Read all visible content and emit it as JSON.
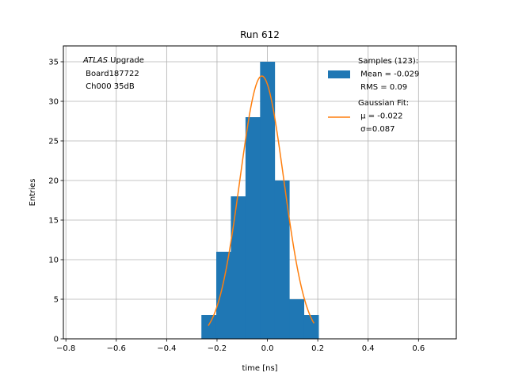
{
  "chart_data": {
    "type": "bar",
    "title": "Run 612",
    "xlabel": "time [ns]",
    "ylabel": "Entries",
    "xlim": [
      -0.81,
      0.75
    ],
    "ylim": [
      0,
      37
    ],
    "xticks": [
      -0.8,
      -0.6,
      -0.4,
      -0.2,
      0.0,
      0.2,
      0.4,
      0.6
    ],
    "xtick_labels": [
      "−0.8",
      "−0.6",
      "−0.4",
      "−0.2",
      "0.0",
      "0.2",
      "0.4",
      "0.6"
    ],
    "yticks": [
      0,
      5,
      10,
      15,
      20,
      25,
      30,
      35
    ],
    "ytick_labels": [
      "0",
      "5",
      "10",
      "15",
      "20",
      "25",
      "30",
      "35"
    ],
    "grid": true,
    "colors": {
      "histogram": "#1f77b4",
      "fit": "#ff7f0e",
      "grid": "#b0b0b0"
    },
    "histogram": {
      "name": "Samples (123):\n Mean = -0.029\n RMS = 0.09",
      "bin_edges": [
        -0.262,
        -0.203,
        -0.145,
        -0.087,
        -0.029,
        0.029,
        0.087,
        0.145,
        0.203
      ],
      "counts": [
        3,
        11,
        18,
        28,
        35,
        20,
        5,
        3
      ]
    },
    "fit": {
      "name": "Gaussian Fit:\n μ = -0.022\n σ=0.087",
      "mu": -0.022,
      "sigma": 0.087,
      "amplitude": 33.2,
      "x_range": [
        -0.235,
        0.185
      ]
    },
    "annotation": {
      "line1_italic": "ATLAS",
      "line1_rest": " Upgrade",
      "line2": " Board187722",
      "line3": " Ch000 35dB"
    },
    "legend_location": "upper right"
  }
}
